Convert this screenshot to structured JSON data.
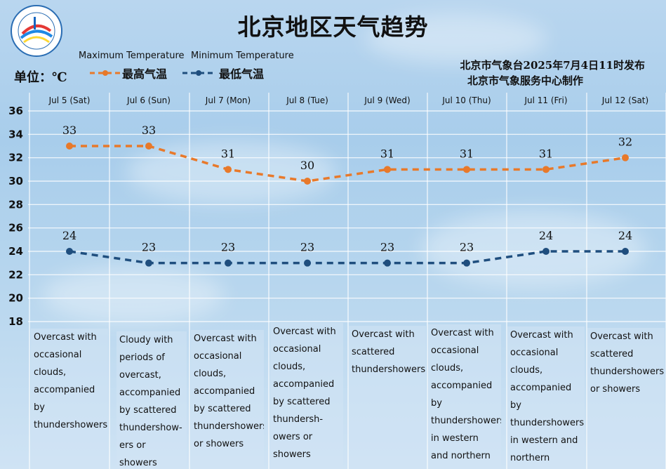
{
  "header": {
    "title": "北京地区天气趋势",
    "unit": "单位：℃",
    "issuer_line1": "北京市气象台2025年7月4日11时发布",
    "issuer_line2": "北京市气象服务中心制作"
  },
  "legend": {
    "max_en": "Maximum Temperature",
    "min_en": "Minimum Temperature",
    "max_cn": "最高气温",
    "min_cn": "最低气温"
  },
  "colors": {
    "max_series": "#e8792a",
    "min_series": "#1f4e7e",
    "grid": "#ffffff"
  },
  "chart_data": {
    "type": "line",
    "title": "北京地区天气趋势",
    "categories": [
      "Jul 5 (Sat)",
      "Jul 6 (Sun)",
      "Jul 7 (Mon)",
      "Jul 8 (Tue)",
      "Jul 9 (Wed)",
      "Jul 10 (Thu)",
      "Jul 11 (Fri)",
      "Jul 12 (Sat)"
    ],
    "series": [
      {
        "name": "最高气温",
        "values": [
          33,
          33,
          31,
          30,
          31,
          31,
          31,
          32
        ]
      },
      {
        "name": "最低气温",
        "values": [
          24,
          23,
          23,
          23,
          23,
          23,
          24,
          24
        ]
      }
    ],
    "ylim": [
      18,
      36
    ],
    "yticks": [
      18,
      20,
      22,
      24,
      26,
      28,
      30,
      32,
      34,
      36
    ],
    "grid": true,
    "legend_position": "top-left"
  },
  "forecasts": [
    "Overcast with occasional clouds, accompanied by thundershowers",
    "Cloudy with periods of overcast, accompanied by scattered thundershow- ers or showers",
    "Overcast with occasional clouds, accompanied by scattered thundershowers or showers",
    "Overcast with occasional clouds, accompanied by scattered thundersh- owers or showers",
    "Overcast with scattered thundershowers",
    "Overcast with occasional clouds, accompanied by thundershowers in western and northern regions",
    "Overcast with occasional clouds, accompanied by thundershowers in western and northern regions",
    "Overcast with scattered thundershowers or showers"
  ]
}
